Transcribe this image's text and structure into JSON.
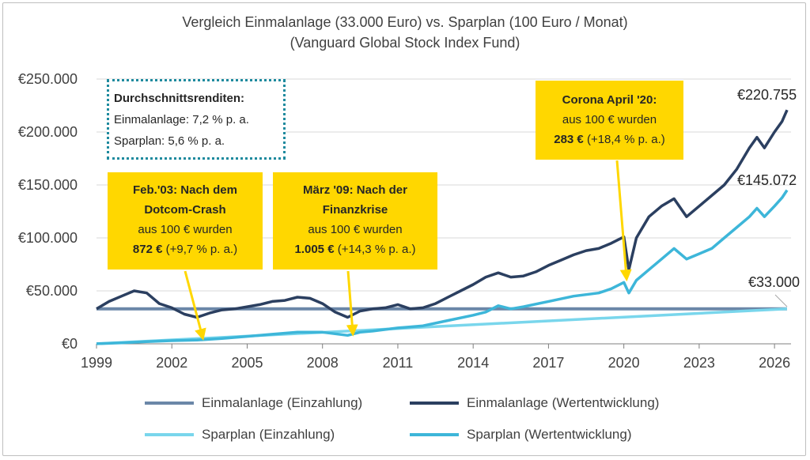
{
  "title_line1": "Vergleich Einmalanlage (33.000 Euro) vs. Sparplan (100 Euro / Monat)",
  "title_line2": "(Vanguard Global Stock Index Fund)",
  "avg_box": {
    "heading": "Durchschnittsrenditen:",
    "line1": "Einmalanlage: 7,2 % p. a.",
    "line2": "Sparplan: 5,6 % p. a."
  },
  "annotations": {
    "feb03": {
      "l1": "Feb.'03: Nach dem",
      "l2": "Dotcom-Crash",
      "l3": "aus 100 € wurden",
      "l4a": "872 €",
      "l4b": " (+9,7 % p. a.)"
    },
    "mar09": {
      "l1": "März '09: Nach der",
      "l2": "Finanzkrise",
      "l3": "aus 100 € wurden",
      "l4a": "1.005 €",
      "l4b": " (+14,3 % p. a.)"
    },
    "apr20": {
      "l1": "Corona April '20:",
      "l2": "aus 100 € wurden",
      "l3a": "283 €",
      "l3b": " (+18,4 % p. a.)"
    }
  },
  "end_labels": {
    "einmal": "€220.755",
    "spar": "€145.072",
    "einzahlung": "€33.000"
  },
  "legend": {
    "einmal_einzahlung": "Einmalanlage (Einzahlung)",
    "einmal_wert": "Einmalanlage (Wertentwicklung)",
    "spar_einzahlung": "Sparplan (Einzahlung)",
    "spar_wert": "Sparplan (Wertentwicklung)"
  },
  "colors": {
    "einmal_einzahlung": "#6b87a8",
    "einmal_wert": "#2b3f60",
    "spar_einzahlung": "#79d6ec",
    "spar_wert": "#3db6d9",
    "annotation_bg": "#ffd700",
    "arrow": "#ffd700",
    "dotted_border": "#1e8a9e"
  },
  "chart_data": {
    "type": "line",
    "title": "Vergleich Einmalanlage (33.000 Euro) vs. Sparplan (100 Euro / Monat) (Vanguard Global Stock Index Fund)",
    "xlim": [
      1999,
      2026.5
    ],
    "ylim": [
      0,
      250000
    ],
    "x_ticks": [
      1999,
      2002,
      2005,
      2008,
      2011,
      2014,
      2017,
      2020,
      2023,
      2026
    ],
    "y_ticks": [
      0,
      50000,
      100000,
      150000,
      200000,
      250000
    ],
    "y_tick_labels": [
      "€0",
      "€50.000",
      "€100.000",
      "€150.000",
      "€200.000",
      "€250.000"
    ],
    "grid": "horizontal",
    "legend_position": "bottom",
    "series": [
      {
        "name": "Einmalanlage (Einzahlung)",
        "x": [
          1999,
          2026.5
        ],
        "values": [
          33000,
          33000
        ]
      },
      {
        "name": "Einmalanlage (Wertentwicklung)",
        "x": [
          1999,
          1999.5,
          2000,
          2000.5,
          2001,
          2001.5,
          2002,
          2002.5,
          2003,
          2003.5,
          2004,
          2004.5,
          2005,
          2005.5,
          2006,
          2006.5,
          2007,
          2007.5,
          2008,
          2008.5,
          2009,
          2009.5,
          2010,
          2010.5,
          2011,
          2011.5,
          2012,
          2012.5,
          2013,
          2013.5,
          2014,
          2014.5,
          2015,
          2015.5,
          2016,
          2016.5,
          2017,
          2017.5,
          2018,
          2018.5,
          2019,
          2019.5,
          2020,
          2020.2,
          2020.5,
          2021,
          2021.5,
          2022,
          2022.5,
          2023,
          2023.5,
          2024,
          2024.5,
          2025,
          2025.3,
          2025.6,
          2026,
          2026.3,
          2026.5
        ],
        "values": [
          33000,
          40000,
          45000,
          50000,
          48000,
          38000,
          34000,
          28000,
          25000,
          29000,
          32000,
          33000,
          35000,
          37000,
          40000,
          41000,
          44000,
          43000,
          38000,
          30000,
          25000,
          31000,
          33000,
          34000,
          37000,
          33000,
          34000,
          38000,
          44000,
          50000,
          56000,
          63000,
          67000,
          63000,
          64000,
          68000,
          74000,
          79000,
          84000,
          88000,
          90000,
          95000,
          101000,
          70000,
          100000,
          120000,
          130000,
          137000,
          120000,
          130000,
          140000,
          150000,
          165000,
          185000,
          195000,
          185000,
          200000,
          210000,
          220755
        ]
      },
      {
        "name": "Sparplan (Einzahlung)",
        "x": [
          1999,
          2026.5
        ],
        "values": [
          100,
          33000
        ]
      },
      {
        "name": "Sparplan (Wertentwicklung)",
        "x": [
          1999,
          2000,
          2001,
          2002,
          2003,
          2004,
          2005,
          2006,
          2007,
          2008,
          2009,
          2009.5,
          2010,
          2011,
          2012,
          2013,
          2014,
          2014.5,
          2015,
          2015.5,
          2016,
          2017,
          2018,
          2019,
          2019.5,
          2020,
          2020.2,
          2020.5,
          2021,
          2021.5,
          2022,
          2022.5,
          2023,
          2023.5,
          2024,
          2024.5,
          2025,
          2025.3,
          2025.6,
          2026,
          2026.3,
          2026.5
        ],
        "values": [
          100,
          1000,
          2000,
          3000,
          3500,
          5000,
          7000,
          9000,
          11000,
          11000,
          8000,
          11000,
          12000,
          15000,
          17000,
          22000,
          27000,
          30000,
          36000,
          33000,
          35000,
          40000,
          45000,
          48000,
          52000,
          58000,
          48000,
          60000,
          70000,
          80000,
          90000,
          80000,
          85000,
          90000,
          100000,
          110000,
          120000,
          128000,
          120000,
          130000,
          138000,
          145072
        ]
      }
    ]
  }
}
